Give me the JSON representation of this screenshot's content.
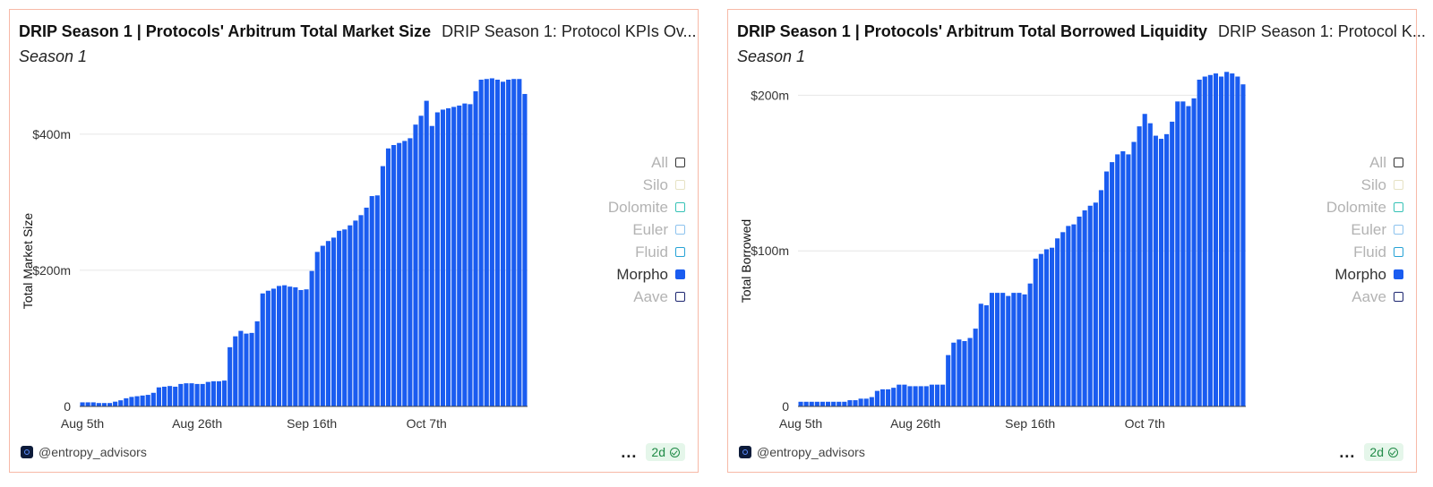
{
  "charts": [
    {
      "title": "DRIP Season 1 | Protocols' Arbitrum Total Market Size",
      "subtitle_link": "DRIP Season 1: Protocol KPIs Ov...",
      "season": "Season 1",
      "footer_user": "@entropy_advisors",
      "footer_dots": "...",
      "freshness_badge": "2d",
      "legend": [
        {
          "label": "All",
          "color": "#333333",
          "active": false
        },
        {
          "label": "Silo",
          "color": "#e6e2c4",
          "active": false
        },
        {
          "label": "Dolomite",
          "color": "#36c2b6",
          "active": false
        },
        {
          "label": "Euler",
          "color": "#8dc3ee",
          "active": false
        },
        {
          "label": "Fluid",
          "color": "#27a3d6",
          "active": false
        },
        {
          "label": "Morpho",
          "color": "#1a5cf0",
          "active": true
        },
        {
          "label": "Aave",
          "color": "#1c2670",
          "active": false
        }
      ]
    },
    {
      "title": "DRIP Season 1 | Protocols' Arbitrum Total Borrowed Liquidity",
      "subtitle_link": "DRIP Season 1: Protocol K...",
      "season": "Season 1",
      "footer_user": "@entropy_advisors",
      "footer_dots": "...",
      "freshness_badge": "2d",
      "legend": [
        {
          "label": "All",
          "color": "#333333",
          "active": false
        },
        {
          "label": "Silo",
          "color": "#e6e2c4",
          "active": false
        },
        {
          "label": "Dolomite",
          "color": "#36c2b6",
          "active": false
        },
        {
          "label": "Euler",
          "color": "#8dc3ee",
          "active": false
        },
        {
          "label": "Fluid",
          "color": "#27a3d6",
          "active": false
        },
        {
          "label": "Morpho",
          "color": "#1a5cf0",
          "active": true
        },
        {
          "label": "Aave",
          "color": "#1c2670",
          "active": false
        }
      ]
    }
  ],
  "chart_data": [
    {
      "type": "bar",
      "title": "DRIP Season 1 | Protocols' Arbitrum Total Market Size",
      "xlabel": "",
      "ylabel": "Total Market Size",
      "series_name": "Morpho",
      "color": "#1a5cf0",
      "ylim": [
        0,
        480
      ],
      "yticks": [
        {
          "value": 0,
          "label": "0"
        },
        {
          "value": 200,
          "label": "$200m"
        },
        {
          "value": 400,
          "label": "$400m"
        }
      ],
      "xticks": [
        {
          "index": 0,
          "label": "Aug 5th"
        },
        {
          "index": 21,
          "label": "Aug 26th"
        },
        {
          "index": 42,
          "label": "Sep 16th"
        },
        {
          "index": 63,
          "label": "Oct 7th"
        }
      ],
      "grid": true,
      "values": [
        6,
        6,
        6,
        5,
        5,
        5,
        7,
        9,
        12,
        14,
        15,
        16,
        17,
        20,
        28,
        29,
        30,
        29,
        33,
        34,
        34,
        33,
        33,
        36,
        37,
        37,
        38,
        87,
        103,
        111,
        107,
        108,
        125,
        166,
        170,
        173,
        177,
        178,
        176,
        175,
        171,
        172,
        199,
        227,
        236,
        243,
        248,
        258,
        260,
        266,
        273,
        281,
        292,
        309,
        310,
        353,
        379,
        384,
        387,
        390,
        394,
        414,
        427,
        449,
        412,
        432,
        436,
        438,
        440,
        442,
        445,
        444,
        463,
        480,
        481,
        482,
        480,
        477,
        480,
        481,
        481,
        459
      ]
    },
    {
      "type": "bar",
      "title": "DRIP Season 1 | Protocols' Arbitrum Total Borrowed Liquidity",
      "xlabel": "",
      "ylabel": "Total Borrowed",
      "series_name": "Morpho",
      "color": "#1a5cf0",
      "ylim": [
        0,
        210
      ],
      "yticks": [
        {
          "value": 0,
          "label": "0"
        },
        {
          "value": 100,
          "label": "$100m"
        },
        {
          "value": 200,
          "label": "$200m"
        }
      ],
      "xticks": [
        {
          "index": 0,
          "label": "Aug 5th"
        },
        {
          "index": 21,
          "label": "Aug 26th"
        },
        {
          "index": 42,
          "label": "Sep 16th"
        },
        {
          "index": 63,
          "label": "Oct 7th"
        }
      ],
      "grid": true,
      "values": [
        3,
        3,
        3,
        3,
        3,
        3,
        3,
        3,
        3,
        4,
        4,
        5,
        5,
        6,
        10,
        11,
        11,
        12,
        14,
        14,
        13,
        13,
        13,
        13,
        14,
        14,
        14,
        33,
        41,
        43,
        42,
        44,
        50,
        66,
        65,
        73,
        73,
        73,
        71,
        73,
        73,
        72,
        79,
        95,
        98,
        101,
        102,
        108,
        112,
        116,
        117,
        122,
        126,
        129,
        131,
        139,
        151,
        157,
        162,
        164,
        162,
        170,
        180,
        188,
        182,
        174,
        172,
        175,
        183,
        196,
        196,
        193,
        198,
        210,
        212,
        213,
        214,
        212,
        215,
        214,
        212,
        207
      ]
    }
  ]
}
